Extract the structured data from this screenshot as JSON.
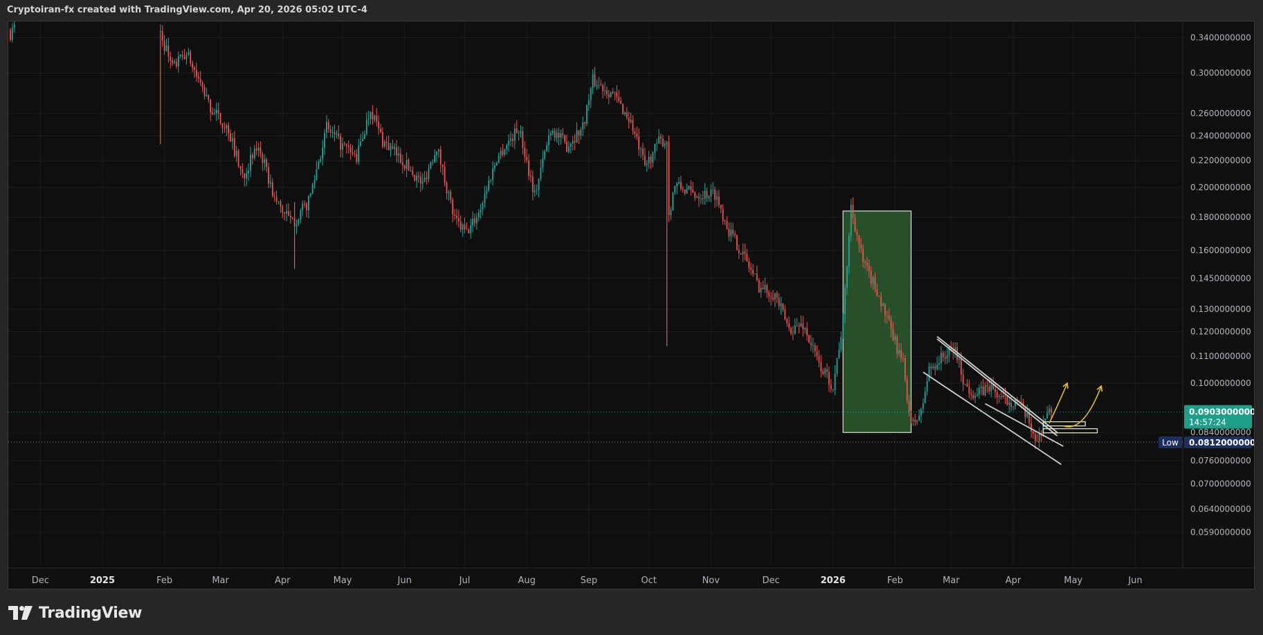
{
  "header": {
    "attribution": "Cryptoiran-fx created with TradingView.com, Apr 20, 2026 05:02 UTC-4"
  },
  "branding": {
    "name": "TradingView"
  },
  "colors": {
    "background": "#0f0f0f",
    "outer": "#262626",
    "up": "#26a69a",
    "down": "#ef5350",
    "grid": "#1c1c1c",
    "box_fill": "#2c5a2e",
    "box_stroke": "#dfe6d8",
    "trendline": "#d0d0d0",
    "projection": "#e4c225",
    "price_tag": "#1f9e89",
    "low_tag": "#1c2f60"
  },
  "chart_data": {
    "type": "candlestick",
    "scale": "log",
    "ylim": [
      0.052,
      0.36
    ],
    "y_ticks": [
      "0.3400000000",
      "0.3000000000",
      "0.2600000000",
      "0.2400000000",
      "0.2200000000",
      "0.2000000000",
      "0.1800000000",
      "0.1600000000",
      "0.1450000000",
      "0.1300000000",
      "0.1200000000",
      "0.1100000000",
      "0.1000000000",
      "0.0840000000",
      "0.0760000000",
      "0.0700000000",
      "0.0640000000",
      "0.0590000000"
    ],
    "x_ticks": [
      {
        "label": "Dec",
        "date": "2024-12-01",
        "bold": false
      },
      {
        "label": "2025",
        "date": "2025-01-01",
        "bold": true
      },
      {
        "label": "Feb",
        "date": "2025-02-01",
        "bold": false
      },
      {
        "label": "Mar",
        "date": "2025-03-01",
        "bold": false
      },
      {
        "label": "Apr",
        "date": "2025-04-01",
        "bold": false
      },
      {
        "label": "May",
        "date": "2025-05-01",
        "bold": false
      },
      {
        "label": "Jun",
        "date": "2025-06-01",
        "bold": false
      },
      {
        "label": "Jul",
        "date": "2025-07-01",
        "bold": false
      },
      {
        "label": "Aug",
        "date": "2025-08-01",
        "bold": false
      },
      {
        "label": "Sep",
        "date": "2025-09-01",
        "bold": false
      },
      {
        "label": "Oct",
        "date": "2025-10-01",
        "bold": false
      },
      {
        "label": "Nov",
        "date": "2025-11-01",
        "bold": false
      },
      {
        "label": "Dec",
        "date": "2025-12-01",
        "bold": false
      },
      {
        "label": "2026",
        "date": "2026-01-01",
        "bold": true
      },
      {
        "label": "Feb",
        "date": "2026-02-01",
        "bold": false
      },
      {
        "label": "Mar",
        "date": "2026-03-01",
        "bold": false
      },
      {
        "label": "Apr",
        "date": "2026-04-01",
        "bold": false
      },
      {
        "label": "May",
        "date": "2026-05-01",
        "bold": false
      },
      {
        "label": "Jun",
        "date": "2026-06-01",
        "bold": false
      }
    ],
    "price_path": [
      [
        "2024-11-16",
        0.345
      ],
      [
        "2024-11-18",
        0.352
      ],
      [
        "2025-01-30",
        0.345
      ],
      [
        "2025-02-05",
        0.305
      ],
      [
        "2025-02-12",
        0.322
      ],
      [
        "2025-02-24",
        0.265
      ],
      [
        "2025-03-05",
        0.245
      ],
      [
        "2025-03-12",
        0.208
      ],
      [
        "2025-03-20",
        0.232
      ],
      [
        "2025-03-28",
        0.192
      ],
      [
        "2025-04-06",
        0.176
      ],
      [
        "2025-04-14",
        0.19
      ],
      [
        "2025-04-23",
        0.247
      ],
      [
        "2025-04-30",
        0.233
      ],
      [
        "2025-05-08",
        0.222
      ],
      [
        "2025-05-15",
        0.265
      ],
      [
        "2025-05-21",
        0.236
      ],
      [
        "2025-05-31",
        0.22
      ],
      [
        "2025-06-10",
        0.202
      ],
      [
        "2025-06-17",
        0.232
      ],
      [
        "2025-06-26",
        0.178
      ],
      [
        "2025-07-02",
        0.17
      ],
      [
        "2025-07-08",
        0.183
      ],
      [
        "2025-07-17",
        0.222
      ],
      [
        "2025-07-28",
        0.247
      ],
      [
        "2025-08-05",
        0.195
      ],
      [
        "2025-08-13",
        0.247
      ],
      [
        "2025-08-21",
        0.232
      ],
      [
        "2025-08-29",
        0.248
      ],
      [
        "2025-09-03",
        0.292
      ],
      [
        "2025-09-13",
        0.279
      ],
      [
        "2025-09-22",
        0.252
      ],
      [
        "2025-09-29",
        0.215
      ],
      [
        "2025-10-06",
        0.235
      ],
      [
        "2025-10-10",
        0.236
      ],
      [
        "2025-10-11",
        0.182
      ],
      [
        "2025-10-14",
        0.202
      ],
      [
        "2025-10-24",
        0.195
      ],
      [
        "2025-11-03",
        0.196
      ],
      [
        "2025-11-10",
        0.172
      ],
      [
        "2025-11-17",
        0.158
      ],
      [
        "2025-11-25",
        0.141
      ],
      [
        "2025-12-03",
        0.137
      ],
      [
        "2025-12-10",
        0.121
      ],
      [
        "2025-12-17",
        0.123
      ],
      [
        "2025-12-25",
        0.107
      ],
      [
        "2026-01-01",
        0.099
      ],
      [
        "2026-01-06",
        0.125
      ],
      [
        "2026-01-10",
        0.187
      ],
      [
        "2026-01-16",
        0.153
      ],
      [
        "2026-01-23",
        0.139
      ],
      [
        "2026-01-30",
        0.12
      ],
      [
        "2026-02-05",
        0.107
      ],
      [
        "2026-02-09",
        0.086
      ],
      [
        "2026-02-14",
        0.09
      ],
      [
        "2026-02-18",
        0.105
      ],
      [
        "2026-02-25",
        0.11
      ],
      [
        "2026-03-03",
        0.113
      ],
      [
        "2026-03-08",
        0.099
      ],
      [
        "2026-03-14",
        0.096
      ],
      [
        "2026-03-20",
        0.099
      ],
      [
        "2026-03-27",
        0.094
      ],
      [
        "2026-04-03",
        0.094
      ],
      [
        "2026-04-09",
        0.087
      ],
      [
        "2026-04-13",
        0.081
      ],
      [
        "2026-04-17",
        0.089
      ],
      [
        "2026-04-20",
        0.0903
      ]
    ],
    "wicks": [
      {
        "date": "2025-01-30",
        "low": 0.233,
        "high": 0.345
      },
      {
        "date": "2025-04-07",
        "low": 0.15,
        "high": 0.19
      },
      {
        "date": "2025-10-10",
        "low": 0.114,
        "high": 0.236
      }
    ],
    "annotations": {
      "rectangle": {
        "x0": "2026-01-06",
        "x1": "2026-02-09",
        "y0": 0.084,
        "y1": 0.184
      },
      "channel": [
        {
          "from": [
            "2026-02-22",
            0.118
          ],
          "to": [
            "2026-04-23",
            0.084
          ]
        },
        {
          "from": [
            "2026-02-22",
            0.117
          ],
          "to": [
            "2026-04-23",
            0.083
          ]
        },
        {
          "from": [
            "2026-02-15",
            0.104
          ],
          "to": [
            "2026-04-25",
            0.075
          ]
        },
        {
          "from": [
            "2026-03-18",
            0.093
          ],
          "to": [
            "2026-04-26",
            0.08
          ]
        }
      ],
      "zones": [
        {
          "x0": "2026-04-16",
          "x1": "2026-05-07",
          "y": 0.0866
        },
        {
          "x0": "2026-04-16",
          "x1": "2026-05-13",
          "y": 0.0845
        }
      ],
      "arrows": [
        {
          "points": [
            [
              "2026-04-19",
              0.0868
            ],
            [
              "2026-04-25",
              0.095
            ],
            [
              "2026-04-28",
              0.1
            ]
          ]
        },
        {
          "points": [
            [
              "2026-04-26",
              0.086
            ],
            [
              "2026-05-06",
              0.0838
            ],
            [
              "2026-05-15",
              0.099
            ]
          ]
        }
      ]
    },
    "last_price": {
      "value": "0.0903000000",
      "countdown": "14:57:24",
      "y": 0.0903
    },
    "low": {
      "label": "Low",
      "value": "0.0812000000",
      "y": 0.0812
    }
  }
}
